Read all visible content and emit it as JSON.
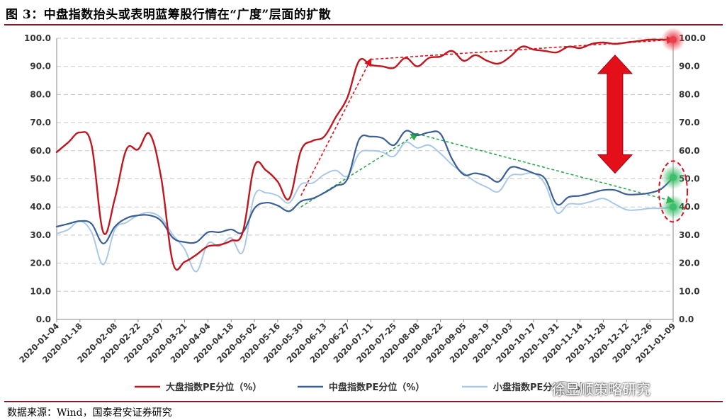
{
  "figure": {
    "title": "图 3：中盘指数抬头或表明蓝筹股行情在“广度”层面的扩散",
    "source": "数据来源：Wind，国泰君安证券研究",
    "watermark": "徐显顺策略研究"
  },
  "colors": {
    "large": "#c0161e",
    "mid": "#3a5f95",
    "small": "#a9c8e8",
    "frame": "#7a1f2b",
    "arrow": "#e3101a",
    "highlight_red": "#e8404a",
    "highlight_green": "#3cbf6a"
  },
  "chart_data": {
    "type": "line",
    "title": "",
    "xlabel": "",
    "ylabel": "",
    "ylim": [
      0,
      100
    ],
    "y2lim": [
      0,
      100
    ],
    "yticks": [
      "0.0",
      "10.0",
      "20.0",
      "30.0",
      "40.0",
      "50.0",
      "60.0",
      "70.0",
      "80.0",
      "90.0",
      "100.0"
    ],
    "grid": "horizontal dashed",
    "legend_position": "bottom",
    "x_ticks": [
      "2020-01-04",
      "2020-01-18",
      "2020-02-08",
      "2020-02-22",
      "2020-03-07",
      "2020-03-21",
      "2020-04-04",
      "2020-04-18",
      "2020-05-02",
      "2020-05-16",
      "2020-05-30",
      "2020-06-13",
      "2020-06-27",
      "2020-07-11",
      "2020-07-25",
      "2020-08-08",
      "2020-08-22",
      "2020-09-05",
      "2020-09-19",
      "2020-10-03",
      "2020-10-17",
      "2020-10-31",
      "2020-11-14",
      "2020-11-28",
      "2020-12-12",
      "2020-12-26",
      "2021-01-09"
    ],
    "x": [
      "2020-01-04",
      "2020-01-11",
      "2020-01-18",
      "2020-01-25",
      "2020-02-01",
      "2020-02-08",
      "2020-02-15",
      "2020-02-22",
      "2020-02-29",
      "2020-03-07",
      "2020-03-14",
      "2020-03-21",
      "2020-03-28",
      "2020-04-04",
      "2020-04-11",
      "2020-04-18",
      "2020-04-25",
      "2020-05-02",
      "2020-05-09",
      "2020-05-16",
      "2020-05-23",
      "2020-05-30",
      "2020-06-06",
      "2020-06-13",
      "2020-06-20",
      "2020-06-27",
      "2020-07-04",
      "2020-07-11",
      "2020-07-18",
      "2020-07-25",
      "2020-08-01",
      "2020-08-08",
      "2020-08-15",
      "2020-08-22",
      "2020-08-29",
      "2020-09-05",
      "2020-09-12",
      "2020-09-19",
      "2020-09-26",
      "2020-10-03",
      "2020-10-10",
      "2020-10-17",
      "2020-10-24",
      "2020-10-31",
      "2020-11-07",
      "2020-11-14",
      "2020-11-21",
      "2020-11-28",
      "2020-12-05",
      "2020-12-12",
      "2020-12-19",
      "2020-12-26",
      "2021-01-02",
      "2021-01-09"
    ],
    "series": [
      {
        "name": "大盘指数PE分位（%）",
        "values": [
          59.5,
          63,
          66.5,
          62,
          31,
          43,
          60.5,
          60.5,
          66,
          50,
          20,
          20.5,
          23,
          26,
          26.5,
          28,
          31,
          54.5,
          53,
          49,
          43,
          60,
          63.5,
          65,
          72,
          79,
          92,
          90.5,
          90,
          89.5,
          93,
          90,
          93,
          93.5,
          95.5,
          92,
          94,
          92,
          91,
          93.5,
          97,
          96,
          95.5,
          95,
          97,
          96.5,
          98,
          98.5,
          98,
          98.5,
          99,
          99.5,
          99.5,
          99.5
        ]
      },
      {
        "name": "中盘指数PE分位（%）",
        "values": [
          33,
          34,
          35,
          34,
          27,
          33,
          36,
          37,
          37,
          35,
          29,
          27.5,
          27.5,
          31,
          31,
          32,
          31,
          39.5,
          41.5,
          40.5,
          38.5,
          42,
          43,
          45,
          47.5,
          50,
          64,
          65,
          64.5,
          62,
          67,
          65.5,
          66.5,
          66,
          57,
          51.5,
          52,
          51,
          49,
          54,
          53.5,
          52,
          50,
          41,
          43.5,
          44,
          45,
          46,
          46,
          44.5,
          44.5,
          45,
          46.5,
          50.5
        ]
      },
      {
        "name": "小盘指数PE分位（%）",
        "values": [
          30.5,
          32,
          35,
          31,
          19.5,
          32,
          34.5,
          37,
          38,
          36,
          30,
          25,
          17,
          27,
          26,
          29,
          24,
          44,
          45,
          44,
          41.5,
          48,
          48.5,
          51.5,
          53,
          51,
          59,
          60,
          59.5,
          58,
          63,
          61,
          62,
          59,
          55,
          52,
          49,
          47,
          45.5,
          51,
          51.5,
          52,
          48,
          38,
          41,
          41,
          42,
          43,
          41,
          39,
          39,
          39.5,
          39.5,
          40
        ]
      }
    ],
    "annotations": {
      "large_trend": {
        "from": {
          "x": "2020-05-30",
          "y": 44
        },
        "mid": {
          "x": "2020-07-11",
          "y": 92.5
        },
        "to": {
          "x": "2021-01-09",
          "y": 99.5
        }
      },
      "mid_trend": {
        "from": {
          "x": "2020-05-30",
          "y": 40
        },
        "mid": {
          "x": "2020-08-08",
          "y": 66
        },
        "to": {
          "x": "2021-01-09",
          "y": 42
        }
      },
      "double_arrow": {
        "x": "2020-12-05",
        "y_top": 94,
        "y_bottom": 52
      },
      "markers": [
        {
          "series": 0,
          "x": "2021-01-09",
          "y": 99.5,
          "kind": "red-glow"
        },
        {
          "series": 1,
          "x": "2021-01-09",
          "y": 50.5,
          "kind": "green-glow"
        },
        {
          "series": 2,
          "x": "2021-01-09",
          "y": 40,
          "kind": "green-glow"
        }
      ],
      "dashed_ellipse": {
        "x": "2021-01-09",
        "y_center": 45.5
      }
    }
  }
}
